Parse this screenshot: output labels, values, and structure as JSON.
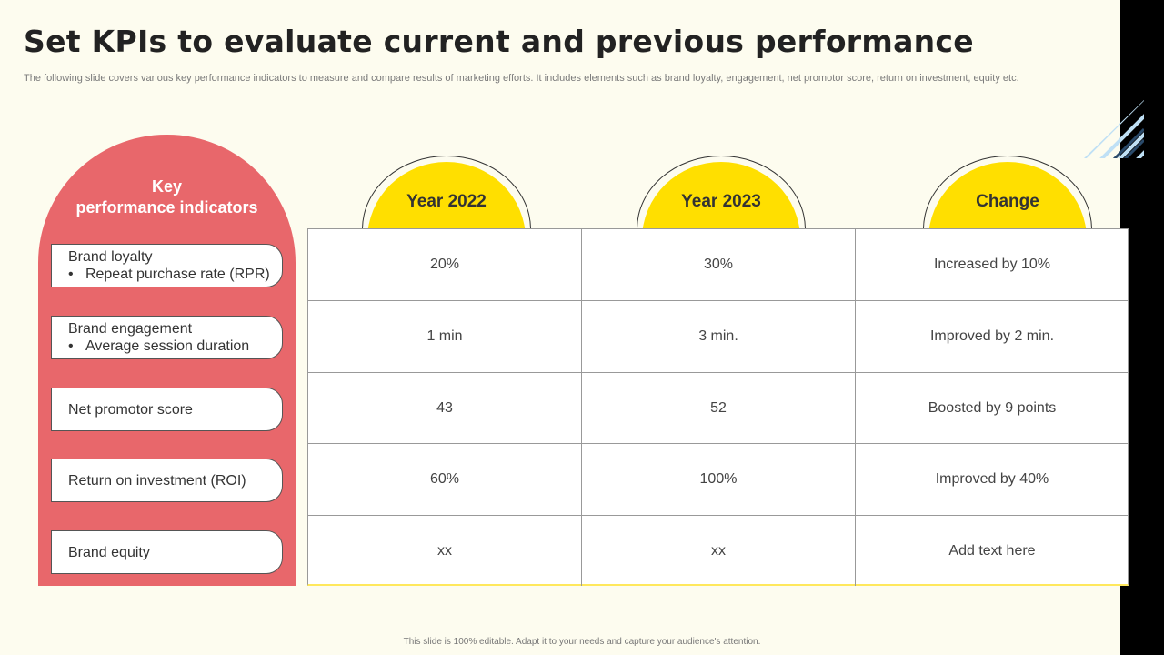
{
  "title": "Set KPIs to evaluate current and previous performance",
  "subtitle": "The following slide covers various key performance indicators to measure and compare results of marketing efforts. It includes elements such as brand loyalty, engagement, net promotor score, return on investment, equity etc.",
  "kpi_panel": {
    "heading_line1": "Key",
    "heading_line2": "performance indicators",
    "items": [
      {
        "label": "Brand loyalty",
        "bullet": "Repeat purchase rate (RPR)"
      },
      {
        "label": "Brand engagement",
        "bullet": "Average session duration"
      },
      {
        "label": "Net promotor score",
        "bullet": ""
      },
      {
        "label": "Return on investment (ROI)",
        "bullet": ""
      },
      {
        "label": "Brand equity",
        "bullet": ""
      }
    ]
  },
  "columns": [
    "Year 2022",
    "Year 2023",
    "Change"
  ],
  "rows": [
    [
      "20%",
      "30%",
      "Increased by 10%"
    ],
    [
      "1 min",
      "3 min.",
      "Improved by 2 min."
    ],
    [
      "43",
      "52",
      "Boosted by 9 points"
    ],
    [
      "60%",
      "100%",
      "Improved by 40%"
    ],
    [
      "xx",
      "xx",
      "Add text here"
    ]
  ],
  "footer": "This slide is 100% editable. Adapt it to your needs and capture your audience's attention.",
  "colors": {
    "background": "#fdfcef",
    "kpi_panel": "#e8676b",
    "header_yellow": "#ffdf00",
    "side_bar": "#000000",
    "stripes": "#bfe0f5"
  }
}
